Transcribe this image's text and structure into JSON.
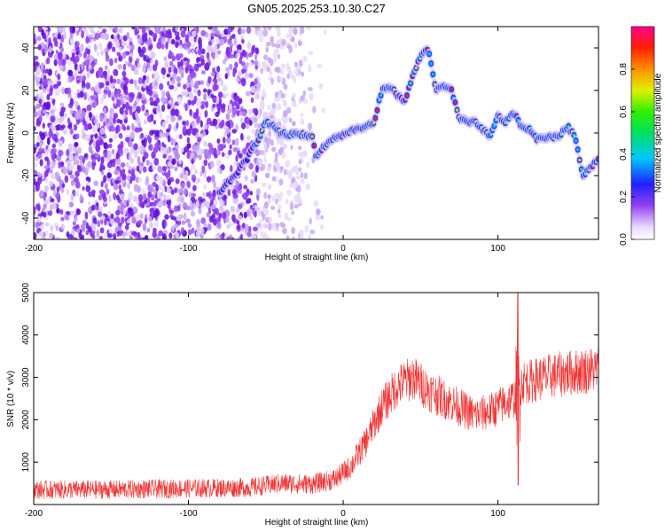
{
  "title": "GN05.2025.253.10.30.C27",
  "chart_data": [
    {
      "type": "heatmap",
      "xlabel": "Height of straight line (km)",
      "ylabel": "Frequency (Hz)",
      "xlim": [
        -200,
        165
      ],
      "ylim": [
        -50,
        50
      ],
      "xticks": [
        -200,
        -100,
        0,
        100
      ],
      "yticks": [
        -40,
        -20,
        0,
        20,
        40
      ],
      "colorbar": {
        "label": "Normalized spectral amplitude",
        "range": [
          0,
          1
        ],
        "ticks": [
          0.0,
          0.2,
          0.4,
          0.6,
          0.8
        ]
      },
      "ridge": {
        "x": [
          -80,
          -70,
          -62,
          -55,
          -50,
          -45,
          -40,
          -35,
          -30,
          -25,
          -20,
          -17,
          -15,
          -10,
          -5,
          0,
          5,
          10,
          15,
          20,
          25,
          30,
          35,
          40,
          45,
          50,
          55,
          60,
          65,
          70,
          75,
          80,
          85,
          90,
          95,
          100,
          105,
          110,
          115,
          120,
          125,
          130,
          135,
          140,
          145,
          150,
          155,
          160,
          165
        ],
        "y": [
          -28,
          -20,
          -12,
          -3,
          5,
          3,
          0,
          -1,
          0,
          -1,
          -2,
          -12,
          -8,
          -5,
          -2,
          -1,
          1,
          2,
          3,
          5,
          20,
          22,
          18,
          15,
          27,
          36,
          40,
          20,
          22,
          20,
          7,
          5,
          5,
          2,
          -2,
          8,
          5,
          10,
          3,
          2,
          -3,
          -2,
          -2,
          -1,
          3,
          -2,
          -20,
          -16,
          -12
        ]
      }
    },
    {
      "type": "line",
      "xlabel": "Height of straight line (km)",
      "ylabel": "SNR (10 * v/v)",
      "xlim": [
        -200,
        165
      ],
      "ylim": [
        0,
        5000
      ],
      "xticks": [
        -200,
        -100,
        0,
        100
      ],
      "yticks": [
        1000,
        2000,
        3000,
        4000,
        5000
      ],
      "color": "#f03434",
      "trend": {
        "x": [
          -200,
          -150,
          -100,
          -60,
          -40,
          -20,
          -5,
          5,
          15,
          25,
          35,
          45,
          55,
          65,
          75,
          85,
          95,
          105,
          110,
          113,
          116,
          120,
          130,
          145,
          165
        ],
        "y": [
          350,
          350,
          380,
          400,
          500,
          480,
          600,
          900,
          1500,
          2300,
          2800,
          3000,
          2700,
          2500,
          2300,
          2100,
          2200,
          2400,
          2500,
          2600,
          2900,
          2900,
          3000,
          3100,
          3200
        ]
      },
      "spike": {
        "x": 113,
        "max": 5000,
        "min": 450
      }
    }
  ]
}
